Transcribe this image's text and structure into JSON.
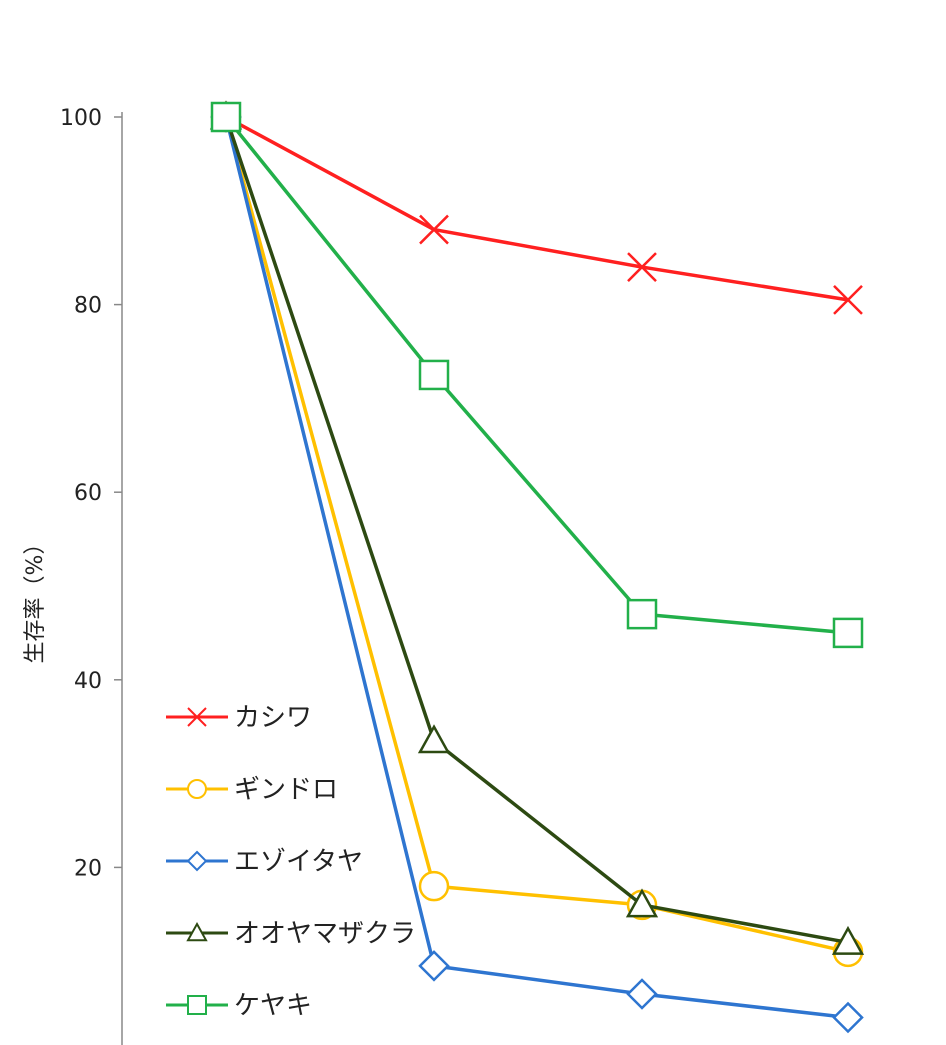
{
  "chart_data": {
    "type": "line",
    "title": "",
    "xlabel": "",
    "ylabel": "生存率（%）",
    "ylim": [
      0,
      100
    ],
    "yticks": [
      20,
      40,
      60,
      80,
      100
    ],
    "x": [
      0,
      1,
      2,
      3
    ],
    "grid": false,
    "legend_position": "bottom-left",
    "series": [
      {
        "name": "カシワ",
        "color": "#ff2020",
        "marker": "x",
        "values": [
          100,
          88,
          84,
          80.5
        ]
      },
      {
        "name": "ギンドロ",
        "color": "#ffc000",
        "marker": "circle",
        "values": [
          100,
          18,
          16,
          11
        ]
      },
      {
        "name": "エゾイタヤ",
        "color": "#2e75d0",
        "marker": "diamond",
        "values": [
          100,
          9.5,
          6.5,
          4
        ]
      },
      {
        "name": "オオヤマザクラ",
        "color": "#2d4a12",
        "marker": "triangle",
        "values": [
          100,
          33.5,
          16,
          12
        ]
      },
      {
        "name": "ケヤキ",
        "color": "#22b04a",
        "marker": "square",
        "values": [
          100,
          72.5,
          47,
          45
        ]
      }
    ]
  }
}
